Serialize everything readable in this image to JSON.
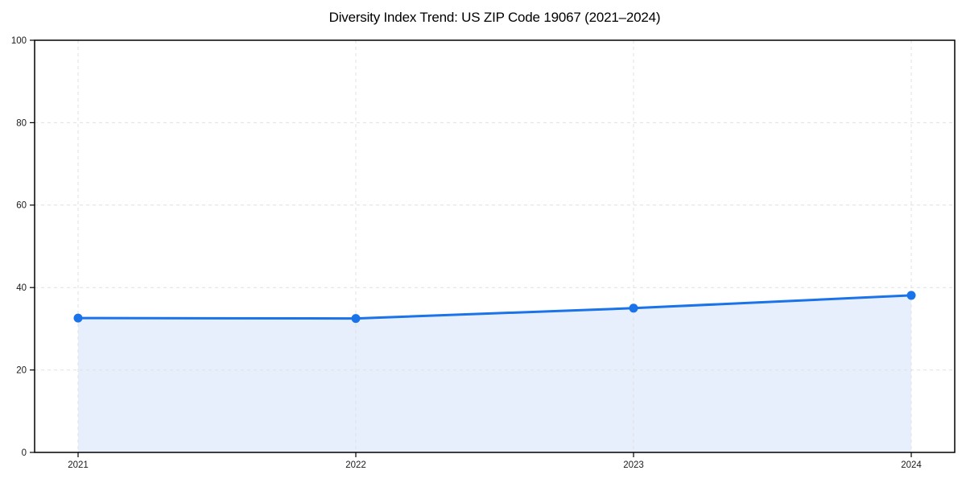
{
  "chart_data": {
    "type": "area",
    "title": "Diversity Index Trend: US ZIP Code 19067 (2021–2024)",
    "series_name": "Diversity Index",
    "categories": [
      "2021",
      "2022",
      "2023",
      "2024"
    ],
    "values": [
      32.6,
      32.5,
      35.0,
      38.1
    ],
    "xlabel": "",
    "ylabel": "",
    "ylim": [
      0,
      100
    ],
    "yticks": [
      0,
      20,
      40,
      60,
      80,
      100
    ],
    "grid": true,
    "grid_style": "dashed",
    "legend": "none",
    "colors": {
      "line": "#1a73e8",
      "marker": "#1a73e8",
      "fill": "#e7effc",
      "grid": "#e0e0e0",
      "axis": "#000000",
      "tick_label": "#1a1a1a",
      "title": "#000000",
      "background": "#ffffff"
    }
  }
}
